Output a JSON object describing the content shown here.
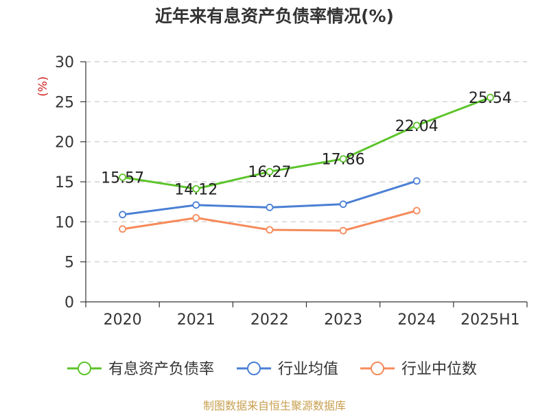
{
  "title": "近年来有息资产负债率情况(%)",
  "source": "制图数据来自恒生聚源数据库",
  "chart_data": {
    "type": "line",
    "title": "近年来有息资产负债率情况(%)",
    "ylabel": "(%)",
    "ylim": [
      0,
      30
    ],
    "yticks": [
      "0",
      "5",
      "10",
      "15",
      "20",
      "25",
      "30"
    ],
    "grid": true,
    "legend_position": "bottom",
    "categories": [
      "2020",
      "2021",
      "2022",
      "2023",
      "2024",
      "2025H1"
    ],
    "series": [
      {
        "name": "有息资产负债率",
        "color": "#5cc42a",
        "values": [
          15.57,
          14.12,
          16.27,
          17.86,
          22.04,
          25.54
        ],
        "labels": [
          "15.57",
          "14.12",
          "16.27",
          "17.86",
          "22.04",
          "25.54"
        ],
        "labeled": true
      },
      {
        "name": "行业均值",
        "color": "#4a7fd4",
        "values": [
          10.9,
          12.1,
          11.8,
          12.2,
          15.1,
          null
        ],
        "labeled": false
      },
      {
        "name": "行业中位数",
        "color": "#f58a5a",
        "values": [
          9.1,
          10.5,
          9.0,
          8.9,
          11.4,
          null
        ],
        "labeled": false
      }
    ]
  }
}
